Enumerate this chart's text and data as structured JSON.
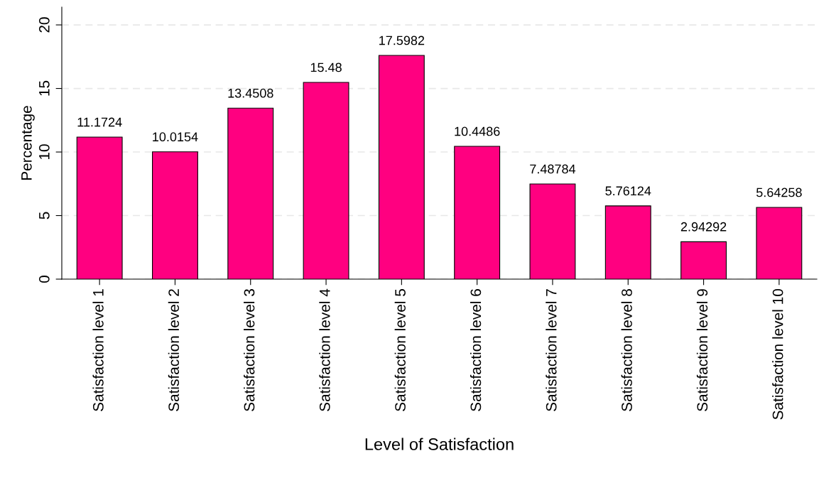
{
  "chart_data": {
    "type": "bar",
    "xlabel": "Level of Satisfaction",
    "ylabel": "Percentage",
    "categories": [
      "Satisfaction level 1",
      "Satisfaction level 2",
      "Satisfaction level 3",
      "Satisfaction level 4",
      "Satisfaction level 5",
      "Satisfaction level 6",
      "Satisfaction level 7",
      "Satisfaction level 8",
      "Satisfaction level 9",
      "Satisfaction level 10"
    ],
    "values": [
      11.1724,
      10.0154,
      13.4508,
      15.48,
      17.5982,
      10.4486,
      7.48784,
      5.76124,
      2.94292,
      5.64258
    ],
    "color": "#ff0080",
    "ylim": [
      0,
      21.4
    ],
    "yticks": [
      0,
      5,
      10,
      15,
      20
    ],
    "grid": "y",
    "data_labels": true,
    "legend": false
  }
}
